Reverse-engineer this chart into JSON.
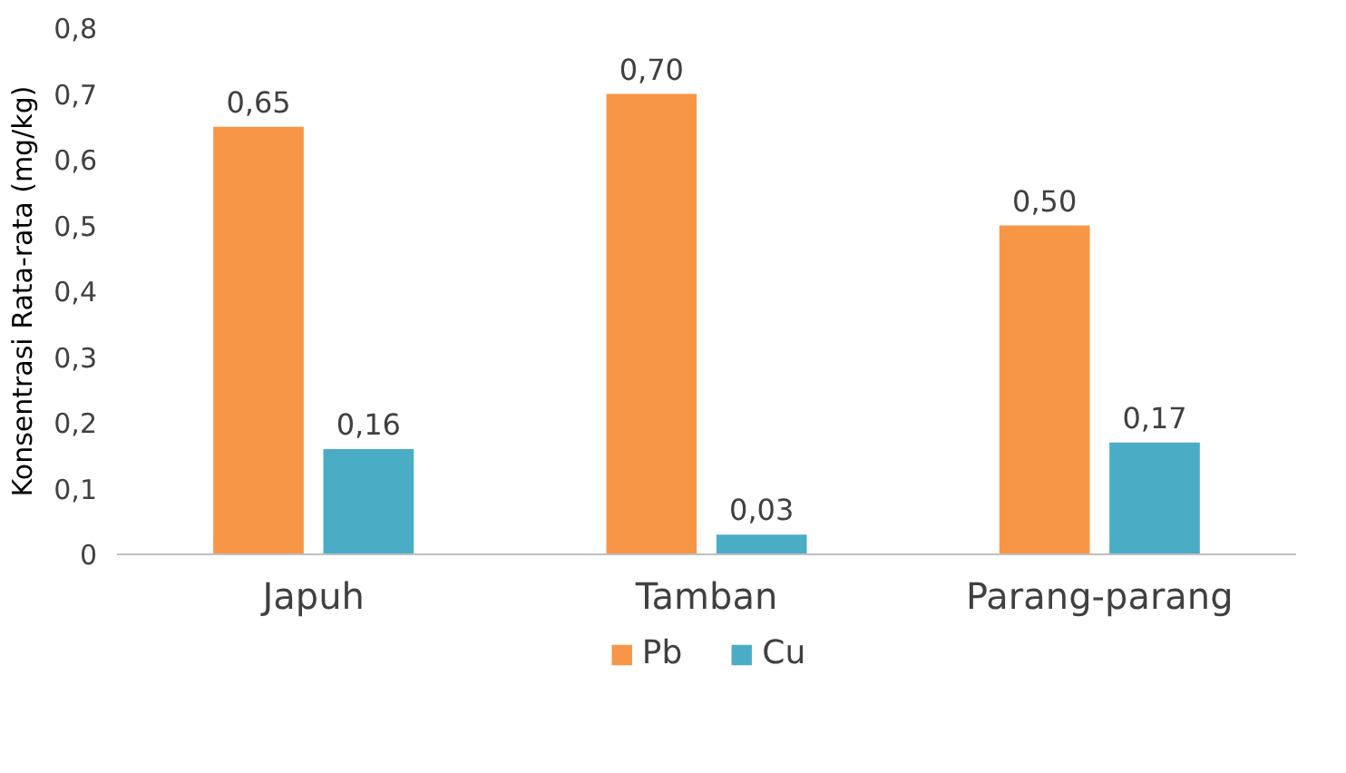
{
  "chart_data": {
    "type": "bar",
    "ylabel": "Konsentrasi Rata-rata (mg/kg)",
    "categories": [
      "Japuh",
      "Tamban",
      "Parang-parang"
    ],
    "series": [
      {
        "name": "Pb",
        "color": "#f79646",
        "values": [
          0.65,
          0.7,
          0.5
        ],
        "value_labels": [
          "0,65",
          "0,70",
          "0,50"
        ]
      },
      {
        "name": "Cu",
        "color": "#4bacc6",
        "values": [
          0.16,
          0.03,
          0.17
        ],
        "value_labels": [
          "0,16",
          "0,03",
          "0,17"
        ]
      }
    ],
    "ylim": [
      0,
      0.8
    ],
    "yticks": [
      0,
      {
        "value": 0.1,
        "label": "0,1"
      },
      {
        "value": 0.2,
        "label": "0,2"
      },
      {
        "value": 0.3,
        "label": "0,3"
      },
      {
        "value": 0.4,
        "label": "0,4"
      },
      {
        "value": 0.5,
        "label": "0,5"
      },
      {
        "value": 0.6,
        "label": "0,6"
      },
      {
        "value": 0.7,
        "label": "0,7"
      },
      {
        "value": 0.8,
        "label": "0,8"
      }
    ],
    "grid": false,
    "legend": "bottom"
  }
}
